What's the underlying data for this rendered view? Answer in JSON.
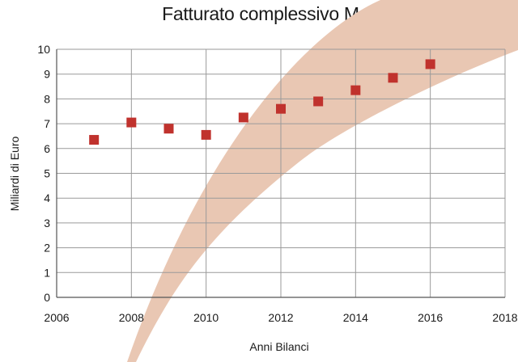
{
  "chart_data": {
    "type": "scatter",
    "title": "Fatturato complessivo Marche",
    "xlabel": "Anni Bilanci",
    "ylabel": "Miliardi di Euro",
    "xlim": [
      2006,
      2018
    ],
    "ylim": [
      0,
      10
    ],
    "x_ticks": [
      2006,
      2008,
      2010,
      2012,
      2014,
      2016,
      2018
    ],
    "y_ticks": [
      0,
      1,
      2,
      3,
      4,
      5,
      6,
      7,
      8,
      9,
      10
    ],
    "grid": true,
    "legend": "none",
    "colors": {
      "marker": "#c0322d",
      "band": "#e9c7b3",
      "grid": "#9a9a9a"
    },
    "series": [
      {
        "x": [
          2007,
          2008,
          2009,
          2010,
          2011,
          2012,
          2013,
          2014,
          2015,
          2016
        ],
        "y": [
          6.35,
          7.05,
          6.8,
          6.55,
          7.25,
          7.6,
          7.9,
          8.35,
          8.85,
          9.4
        ]
      }
    ]
  }
}
